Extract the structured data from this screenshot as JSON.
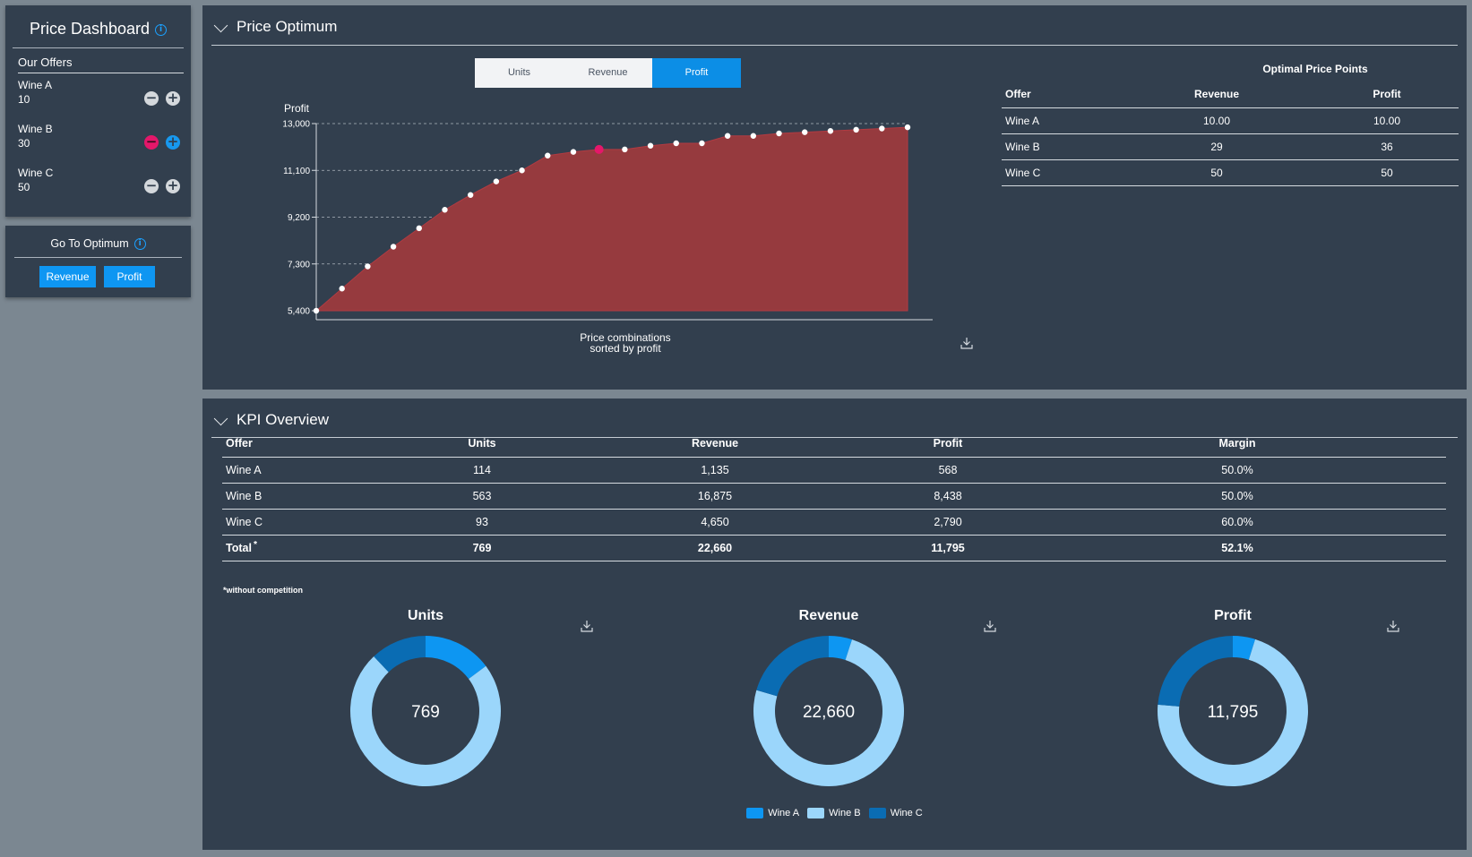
{
  "sidebar": {
    "dashboard_title": "Price Dashboard",
    "offers_heading": "Our Offers",
    "offers": [
      {
        "name": "Wine A",
        "value": "10"
      },
      {
        "name": "Wine B",
        "value": "30"
      },
      {
        "name": "Wine C",
        "value": "50"
      }
    ],
    "goto_title": "Go To Optimum",
    "goto_buttons": {
      "revenue": "Revenue",
      "profit": "Profit"
    }
  },
  "price_optimum": {
    "section_title": "Price Optimum",
    "tabs": [
      {
        "label": "Units",
        "active": false
      },
      {
        "label": "Revenue",
        "active": false
      },
      {
        "label": "Profit",
        "active": true
      }
    ],
    "optimal_table": {
      "caption": "Optimal Price Points",
      "headers": [
        "Offer",
        "Revenue",
        "Profit"
      ],
      "rows": [
        [
          "Wine A",
          "10.00",
          "10.00"
        ],
        [
          "Wine B",
          "29",
          "36"
        ],
        [
          "Wine C",
          "50",
          "50"
        ]
      ]
    }
  },
  "chart_data": [
    {
      "type": "area",
      "ylabel": "Profit",
      "xlabel_line1": "Price combinations",
      "xlabel_line2": "sorted by profit",
      "ylim": [
        5400,
        13000
      ],
      "yticks": [
        5400,
        7300,
        9200,
        11100,
        13000
      ],
      "ytick_labels": [
        "5,400",
        "7,300",
        "9,200",
        "11,100",
        "13,000"
      ],
      "x": [
        0,
        1,
        2,
        3,
        4,
        5,
        6,
        7,
        8,
        9,
        10,
        11,
        12,
        13,
        14,
        15,
        16,
        17,
        18,
        19,
        20,
        21,
        22,
        23
      ],
      "values": [
        5400,
        6300,
        7200,
        8000,
        8750,
        9500,
        10100,
        10650,
        11100,
        11700,
        11850,
        11950,
        11950,
        12100,
        12200,
        12200,
        12500,
        12500,
        12600,
        12650,
        12700,
        12750,
        12800,
        12850
      ],
      "highlight_index": 11,
      "grid": true,
      "area_color": "#963a3e",
      "point_color": "#ffffff",
      "highlight_color": "#e4176a"
    },
    {
      "type": "pie",
      "title": "Units",
      "center_label": "769",
      "labels": [
        "Wine A",
        "Wine B",
        "Wine C"
      ],
      "values": [
        114,
        563,
        93
      ]
    },
    {
      "type": "pie",
      "title": "Revenue",
      "center_label": "22,660",
      "labels": [
        "Wine A",
        "Wine B",
        "Wine C"
      ],
      "values": [
        1135,
        16875,
        4650
      ]
    },
    {
      "type": "pie",
      "title": "Profit",
      "center_label": "11,795",
      "labels": [
        "Wine A",
        "Wine B",
        "Wine C"
      ],
      "values": [
        568,
        8438,
        2790
      ]
    }
  ],
  "kpi": {
    "section_title": "KPI Overview",
    "headers": [
      "Offer",
      "Units",
      "Revenue",
      "Profit",
      "Margin"
    ],
    "rows": [
      [
        "Wine A",
        "114",
        "1,135",
        "568",
        "50.0%"
      ],
      [
        "Wine B",
        "563",
        "16,875",
        "8,438",
        "50.0%"
      ],
      [
        "Wine C",
        "93",
        "4,650",
        "2,790",
        "60.0%"
      ]
    ],
    "total_label": "Total",
    "total_mark": "*",
    "total_values": [
      "769",
      "22,660",
      "11,795",
      "52.1%"
    ],
    "footnote": "*without competition",
    "legend": [
      "Wine A",
      "Wine B",
      "Wine C"
    ]
  },
  "colors": {
    "wine_a": "#0d96f2",
    "wine_b": "#9bd6fb",
    "wine_c": "#0a6cb3",
    "panel": "#323f4e",
    "accent": "#0e96f2"
  }
}
